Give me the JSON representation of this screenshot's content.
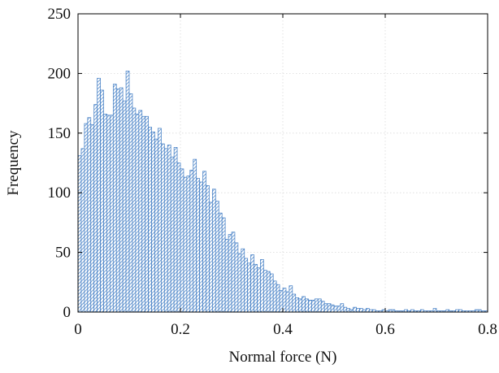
{
  "chart_data": {
    "type": "bar",
    "title": "",
    "xlabel": "Normal force (N)",
    "ylabel": "Frequency",
    "xlim": [
      0,
      0.8
    ],
    "ylim": [
      0,
      250
    ],
    "xticks": [
      0,
      0.2,
      0.4,
      0.6,
      0.8
    ],
    "xtick_labels": [
      "0",
      "0.2",
      "0.4",
      "0.6",
      "0.8"
    ],
    "yticks": [
      0,
      50,
      100,
      150,
      200,
      250
    ],
    "ytick_labels": [
      "0",
      "50",
      "100",
      "150",
      "200",
      "250"
    ],
    "grid": true,
    "bin_width": 0.00625,
    "bar_color": "#3a78c2",
    "hatch": "diagonal",
    "values": [
      131,
      137,
      158,
      163,
      157,
      174,
      196,
      186,
      166,
      165,
      165,
      191,
      187,
      188,
      177,
      202,
      183,
      171,
      166,
      169,
      164,
      164,
      155,
      151,
      145,
      154,
      141,
      137,
      140,
      130,
      138,
      125,
      120,
      113,
      114,
      119,
      128,
      112,
      109,
      118,
      106,
      92,
      103,
      93,
      83,
      79,
      61,
      65,
      67,
      58,
      49,
      53,
      45,
      41,
      48,
      40,
      37,
      44,
      35,
      34,
      32,
      26,
      23,
      18,
      20,
      17,
      22,
      15,
      12,
      11,
      13,
      11,
      10,
      10,
      11,
      11,
      9,
      7,
      7,
      6,
      5,
      5,
      7,
      4,
      3,
      2,
      4,
      3,
      3,
      2,
      3,
      2,
      2,
      1,
      1,
      2,
      1,
      2,
      2,
      1,
      1,
      1,
      2,
      1,
      2,
      1,
      1,
      2,
      1,
      1,
      1,
      3,
      1,
      1,
      1,
      2,
      1,
      1,
      2,
      2,
      1,
      1,
      1,
      1,
      2,
      2,
      1,
      1
    ]
  }
}
